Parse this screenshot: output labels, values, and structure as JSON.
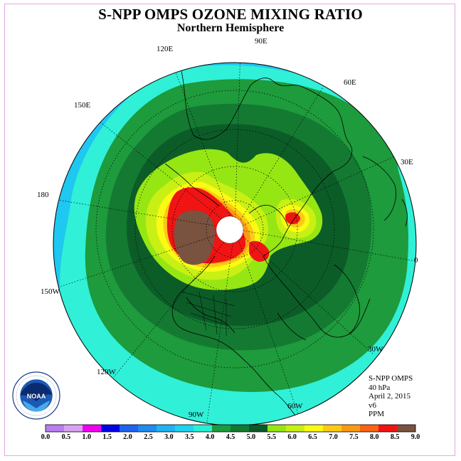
{
  "header": {
    "title": "S-NPP OMPS OZONE MIXING RATIO",
    "subtitle": "Northern Hemisphere"
  },
  "longitude_labels": [
    {
      "text": "90E"
    },
    {
      "text": "60E"
    },
    {
      "text": "30E"
    },
    {
      "text": "0"
    },
    {
      "text": "30W"
    },
    {
      "text": "60W"
    },
    {
      "text": "90W"
    },
    {
      "text": "120W"
    },
    {
      "text": "150W"
    },
    {
      "text": "180"
    },
    {
      "text": "150E"
    },
    {
      "text": "120E"
    }
  ],
  "info": {
    "instrument": "S-NPP OMPS",
    "level": "40 hPa",
    "date": "April 2, 2015",
    "version": "v6",
    "units": "PPM"
  },
  "logo": {
    "name": "NOAA",
    "ring_text": "NATIONAL OCEANIC AND ATMOSPHERIC ADMINISTRATION · U.S. DEPARTMENT OF COMMERCE"
  },
  "colorbar": {
    "ticks": [
      "0.0",
      "0.5",
      "1.0",
      "1.5",
      "2.0",
      "2.5",
      "3.0",
      "3.5",
      "4.0",
      "4.5",
      "5.0",
      "5.5",
      "6.0",
      "6.5",
      "7.0",
      "7.5",
      "8.0",
      "8.5",
      "9.0"
    ],
    "colors": [
      "#b97ef0",
      "#d9a2f0",
      "#f000f0",
      "#0000e8",
      "#1e64f0",
      "#1e8cf0",
      "#1eb4f0",
      "#1ed2f0",
      "#28f0d2",
      "#1e9b3c",
      "#147832",
      "#0a5a28",
      "#96e614",
      "#c8f014",
      "#fafa14",
      "#faca14",
      "#fa9a14",
      "#fa6414",
      "#f01414",
      "#7a5240"
    ]
  },
  "chart_data": {
    "type": "heatmap",
    "title": "S-NPP OMPS OZONE MIXING RATIO",
    "subtitle": "Northern Hemisphere",
    "units": "PPM",
    "level": "40 hPa",
    "date": "April 2, 2015",
    "projection": "north polar stereographic",
    "scale_min": 0.0,
    "scale_max": 9.0,
    "scale_step": 0.5,
    "regions": [
      {
        "value_range": [
          3.0,
          3.5
        ],
        "location": "outer ring near equator, Pacific side"
      },
      {
        "value_range": [
          3.5,
          4.0
        ],
        "location": "low latitudes ring"
      },
      {
        "value_range": [
          4.0,
          4.5
        ],
        "location": "mid latitudes"
      },
      {
        "value_range": [
          4.5,
          5.0
        ],
        "location": "mid-high latitudes"
      },
      {
        "value_range": [
          5.0,
          5.5
        ],
        "location": "ring around polar region"
      },
      {
        "value_range": [
          6.0,
          7.5
        ],
        "location": "high latitudes, Alaska/Arctic"
      },
      {
        "value_range": [
          8.0,
          8.5
        ],
        "location": "Arctic near Siberia/Alaska and Scandinavia"
      },
      {
        "value_range": [
          8.5,
          9.0
        ],
        "location": "maximum over Arctic near Alaska"
      }
    ]
  }
}
